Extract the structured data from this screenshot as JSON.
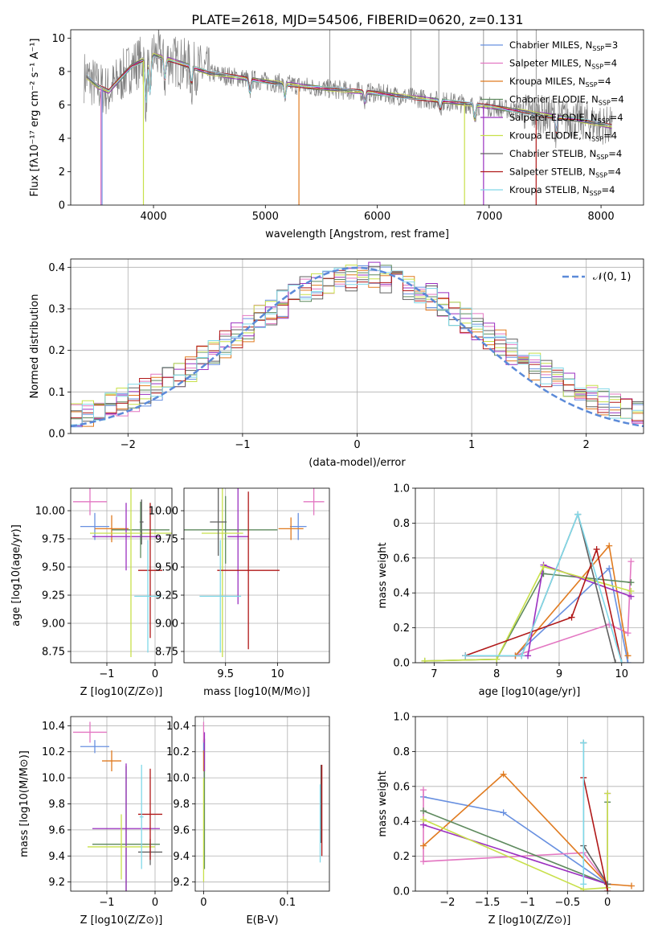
{
  "figure": {
    "title": "PLATE=2618, MJD=54506, FIBERID=0620, z=0.131"
  },
  "chart_data": [
    {
      "id": "spectrum",
      "type": "line",
      "xlabel": "wavelength [Angstrom, rest frame]",
      "ylabel": "Flux [fλ10⁻¹⁷ erg cm⁻² s⁻¹ A⁻¹]",
      "xlim": [
        3260,
        8380
      ],
      "ylim": [
        0,
        10.5
      ],
      "xticks": [
        4000,
        5000,
        6000,
        7000,
        8000
      ],
      "yticks": [
        0,
        2,
        4,
        6,
        8,
        10
      ],
      "grid": false,
      "legend": "upper-right",
      "data_color": "#808080",
      "continuum": {
        "x": [
          3400,
          3500,
          3600,
          3800,
          4000,
          4200,
          4500,
          5000,
          5500,
          6000,
          6500,
          7000,
          7500,
          7800,
          8100
        ],
        "y": [
          7.7,
          7.1,
          6.8,
          8.3,
          9.0,
          8.6,
          7.9,
          7.4,
          7.0,
          6.7,
          6.3,
          5.9,
          5.4,
          5.1,
          4.7
        ]
      },
      "series": [
        {
          "name": "Chabrier MILES, N_SSP=3",
          "color": "#6890e0"
        },
        {
          "name": "Salpeter MILES, N_SSP=4",
          "color": "#e377c2"
        },
        {
          "name": "Kroupa MILES, N_SSP=4",
          "color": "#e07b20"
        },
        {
          "name": "Chabrier ELODIE, N_SSP=4",
          "color": "#5e8a5e"
        },
        {
          "name": "Salpeter ELODIE, N_SSP=4",
          "color": "#9b30c0"
        },
        {
          "name": "Kroupa ELODIE, N_SSP=4",
          "color": "#c8e04a"
        },
        {
          "name": "Chabrier STELIB, N_SSP=4",
          "color": "#606060"
        },
        {
          "name": "Salpeter STELIB, N_SSP=4",
          "color": "#b01818"
        },
        {
          "name": "Kroupa STELIB, N_SSP=4",
          "color": "#80d8e8"
        }
      ]
    },
    {
      "id": "residuals",
      "type": "line",
      "xlabel": "(data-model)/error",
      "ylabel": "Normed distribution",
      "xlim": [
        -2.5,
        2.5
      ],
      "ylim": [
        0,
        0.42
      ],
      "xticks": [
        -2,
        -1,
        0,
        1,
        2
      ],
      "yticks": [
        0.0,
        0.1,
        0.2,
        0.3,
        0.4
      ],
      "grid": true,
      "legend": "upper-right",
      "reference": {
        "name": "𝒩(0, 1)",
        "color": "#5b8ad8"
      }
    },
    {
      "id": "age_vs_Z",
      "type": "scatter",
      "xlabel": "Z [log10(Z/Z⊙)]",
      "ylabel": "age  [log10(age/yr)]",
      "xlim": [
        -1.75,
        0.35
      ],
      "ylim": [
        8.65,
        10.2
      ],
      "xticks": [
        -1,
        0
      ],
      "yticks": [
        8.75,
        9.0,
        9.25,
        9.5,
        9.75,
        10.0
      ],
      "grid": true,
      "points": [
        {
          "series": 0,
          "x": -1.25,
          "xerr": 0.3,
          "y": 9.86,
          "yerr": 0.12
        },
        {
          "series": 1,
          "x": -1.35,
          "xerr": 0.35,
          "y": 10.08,
          "yerr": 0.12
        },
        {
          "series": 2,
          "x": -0.9,
          "xerr": 0.35,
          "y": 9.84,
          "yerr": 0.12
        },
        {
          "series": 3,
          "x": -0.3,
          "xerr": 0.6,
          "y": 9.83,
          "yerr": 0.25
        },
        {
          "series": 4,
          "x": -0.6,
          "xerr": 0.7,
          "y": 9.77,
          "yerr": 0.3
        },
        {
          "series": 5,
          "x": -0.5,
          "xerr": 0.85,
          "y": 9.8,
          "yerr": 1.1
        },
        {
          "series": 6,
          "x": -0.28,
          "xerr": 0.04,
          "y": 9.9,
          "yerr": 0.2
        },
        {
          "series": 7,
          "x": -0.1,
          "xerr": 0.25,
          "y": 9.47,
          "yerr": 0.6
        },
        {
          "series": 8,
          "x": -0.15,
          "xerr": 0.28,
          "y": 9.24,
          "yerr": 0.5
        }
      ]
    },
    {
      "id": "age_vs_mass",
      "type": "scatter",
      "xlabel": "mass [log10(M/M⊙)]",
      "ylabel": "",
      "xlim": [
        9.1,
        10.5
      ],
      "ylim": [
        8.65,
        10.2
      ],
      "xticks": [
        9.5,
        10.0
      ],
      "yticks": [
        8.75,
        9.0,
        9.25,
        9.5,
        9.75,
        10.0
      ],
      "grid": true,
      "points": [
        {
          "series": 0,
          "x": 10.2,
          "xerr": 0.08,
          "y": 9.86,
          "yerr": 0.12
        },
        {
          "series": 1,
          "x": 10.35,
          "xerr": 0.1,
          "y": 10.08,
          "yerr": 0.12
        },
        {
          "series": 2,
          "x": 10.13,
          "xerr": 0.12,
          "y": 9.84,
          "yerr": 0.1
        },
        {
          "series": 3,
          "x": 9.5,
          "xerr": 0.5,
          "y": 9.83,
          "yerr": 0.3
        },
        {
          "series": 4,
          "x": 9.62,
          "xerr": 0.1,
          "y": 9.77,
          "yerr": 0.6
        },
        {
          "series": 5,
          "x": 9.47,
          "xerr": 0.2,
          "y": 9.8,
          "yerr": 1.1
        },
        {
          "series": 6,
          "x": 9.43,
          "xerr": 0.08,
          "y": 9.9,
          "yerr": 0.3
        },
        {
          "series": 7,
          "x": 9.72,
          "xerr": 0.3,
          "y": 9.47,
          "yerr": 0.7
        },
        {
          "series": 8,
          "x": 9.45,
          "xerr": 0.2,
          "y": 9.24,
          "yerr": 0.5
        }
      ]
    },
    {
      "id": "weight_vs_age",
      "type": "line",
      "xlabel": "age  [log10(age/yr)]",
      "ylabel": "mass weight",
      "xlim": [
        6.7,
        10.35
      ],
      "ylim": [
        0,
        1.0
      ],
      "xticks": [
        7,
        8,
        9,
        10
      ],
      "yticks": [
        0.0,
        0.2,
        0.4,
        0.6,
        0.8,
        1.0
      ],
      "grid": true,
      "series": [
        {
          "index": 0,
          "x": [
            7.5,
            8.3,
            9.8,
            10.1
          ],
          "y": [
            0.04,
            0.04,
            0.54,
            0.0
          ]
        },
        {
          "index": 1,
          "x": [
            7.5,
            8.3,
            9.8,
            10.1,
            10.15
          ],
          "y": [
            0.04,
            0.04,
            0.22,
            0.17,
            0.58
          ]
        },
        {
          "index": 2,
          "x": [
            7.5,
            8.3,
            9.8,
            10.1
          ],
          "y": [
            0.04,
            0.04,
            0.67,
            0.04
          ]
        },
        {
          "index": 3,
          "x": [
            6.85,
            8.0,
            8.75,
            10.15
          ],
          "y": [
            0.01,
            0.02,
            0.51,
            0.46
          ]
        },
        {
          "index": 4,
          "x": [
            7.5,
            8.5,
            8.75,
            10.15
          ],
          "y": [
            0.04,
            0.04,
            0.56,
            0.38
          ]
        },
        {
          "index": 5,
          "x": [
            6.85,
            8.0,
            8.75,
            10.15
          ],
          "y": [
            0.01,
            0.02,
            0.55,
            0.41
          ]
        },
        {
          "index": 6,
          "x": [
            7.5,
            8.4,
            9.3,
            9.9
          ],
          "y": [
            0.04,
            0.04,
            0.85,
            0.0
          ]
        },
        {
          "index": 7,
          "x": [
            7.5,
            9.2,
            9.6,
            10.0
          ],
          "y": [
            0.04,
            0.26,
            0.65,
            0.0
          ]
        },
        {
          "index": 8,
          "x": [
            7.5,
            8.4,
            9.3,
            10.0
          ],
          "y": [
            0.04,
            0.04,
            0.85,
            0.0
          ]
        }
      ]
    },
    {
      "id": "mass_vs_Z",
      "type": "scatter",
      "xlabel": "Z [log10(Z/Z⊙)]",
      "ylabel": "mass [log10(M/M⊙)]",
      "xlim": [
        -1.75,
        0.35
      ],
      "ylim": [
        9.13,
        10.47
      ],
      "xticks": [
        -1,
        0
      ],
      "yticks": [
        9.2,
        9.4,
        9.6,
        9.8,
        10.0,
        10.2,
        10.4
      ],
      "grid": true,
      "points": [
        {
          "series": 0,
          "x": -1.25,
          "xerr": 0.3,
          "y": 10.24,
          "yerr": 0.05
        },
        {
          "series": 1,
          "x": -1.35,
          "xerr": 0.35,
          "y": 10.35,
          "yerr": 0.08
        },
        {
          "series": 2,
          "x": -0.9,
          "xerr": 0.2,
          "y": 10.13,
          "yerr": 0.08
        },
        {
          "series": 3,
          "x": -0.6,
          "xerr": 0.7,
          "y": 9.49,
          "yerr": 0.6
        },
        {
          "series": 4,
          "x": -0.6,
          "xerr": 0.7,
          "y": 9.61,
          "yerr": 0.5
        },
        {
          "series": 5,
          "x": -0.7,
          "xerr": 0.7,
          "y": 9.47,
          "yerr": 0.25
        },
        {
          "series": 6,
          "x": -0.1,
          "xerr": 0.25,
          "y": 9.43,
          "yerr": 0.1
        },
        {
          "series": 7,
          "x": -0.1,
          "xerr": 0.25,
          "y": 9.72,
          "yerr": 0.35
        },
        {
          "series": 8,
          "x": -0.28,
          "xerr": 0.04,
          "y": 9.7,
          "yerr": 0.4
        }
      ]
    },
    {
      "id": "mass_vs_EBV",
      "type": "scatter",
      "xlabel": "E(B-V)",
      "ylabel": "",
      "xlim": [
        -0.01,
        0.15
      ],
      "ylim": [
        9.13,
        10.47
      ],
      "xticks": [
        0.0,
        0.1
      ],
      "yticks": [
        9.2,
        9.4,
        9.6,
        9.8,
        10.0,
        10.2,
        10.4
      ],
      "grid": true,
      "points": [
        {
          "series": 0,
          "x": 0.0,
          "y": 10.24,
          "yerr": 0.05
        },
        {
          "series": 1,
          "x": 0.0,
          "y": 10.35,
          "yerr": 0.08
        },
        {
          "series": 2,
          "x": 0.0,
          "y": 10.13,
          "yerr": 0.08
        },
        {
          "series": 3,
          "x": 0.001,
          "y": 9.8,
          "yerr": 0.5
        },
        {
          "series": 4,
          "x": 0.001,
          "y": 10.2,
          "yerr": 0.15
        },
        {
          "series": 5,
          "x": 0.0,
          "y": 9.6,
          "yerr": 0.4
        },
        {
          "series": 6,
          "x": 0.14,
          "y": 9.8,
          "yerr": 0.3
        },
        {
          "series": 7,
          "x": 0.141,
          "y": 9.75,
          "yerr": 0.35
        },
        {
          "series": 8,
          "x": 0.139,
          "y": 9.65,
          "yerr": 0.3
        }
      ]
    },
    {
      "id": "weight_vs_Z",
      "type": "line",
      "xlabel": "Z [log10(Z/Z⊙)]",
      "ylabel": "mass weight",
      "xlim": [
        -2.4,
        0.45
      ],
      "ylim": [
        0,
        1.0
      ],
      "xticks": [
        -2.0,
        -1.5,
        -1.0,
        -0.5,
        0.0
      ],
      "yticks": [
        0.0,
        0.2,
        0.4,
        0.6,
        0.8,
        1.0
      ],
      "grid": true,
      "series": [
        {
          "index": 0,
          "x": [
            -2.3,
            -1.3,
            0.0,
            0.0
          ],
          "y": [
            0.54,
            0.45,
            0.04,
            0.0
          ]
        },
        {
          "index": 1,
          "x": [
            -2.3,
            -2.3,
            -0.3,
            0.0
          ],
          "y": [
            0.58,
            0.17,
            0.22,
            0.04
          ]
        },
        {
          "index": 2,
          "x": [
            -2.3,
            -1.3,
            0.0,
            0.3
          ],
          "y": [
            0.26,
            0.67,
            0.04,
            0.03
          ]
        },
        {
          "index": 3,
          "x": [
            -2.3,
            0.0,
            0.0
          ],
          "y": [
            0.46,
            0.04,
            0.51
          ]
        },
        {
          "index": 4,
          "x": [
            -2.3,
            0.0,
            0.0
          ],
          "y": [
            0.38,
            0.04,
            0.56
          ]
        },
        {
          "index": 5,
          "x": [
            -2.3,
            -0.3,
            0.0,
            0.0
          ],
          "y": [
            0.41,
            0.01,
            0.02,
            0.56
          ]
        },
        {
          "index": 6,
          "x": [
            -0.3,
            -0.3,
            0.0
          ],
          "y": [
            0.85,
            0.26,
            0.04
          ]
        },
        {
          "index": 7,
          "x": [
            -0.3,
            0.0
          ],
          "y": [
            0.65,
            0.0
          ]
        },
        {
          "index": 8,
          "x": [
            -0.3,
            -0.3
          ],
          "y": [
            0.85,
            0.04
          ]
        }
      ]
    }
  ]
}
